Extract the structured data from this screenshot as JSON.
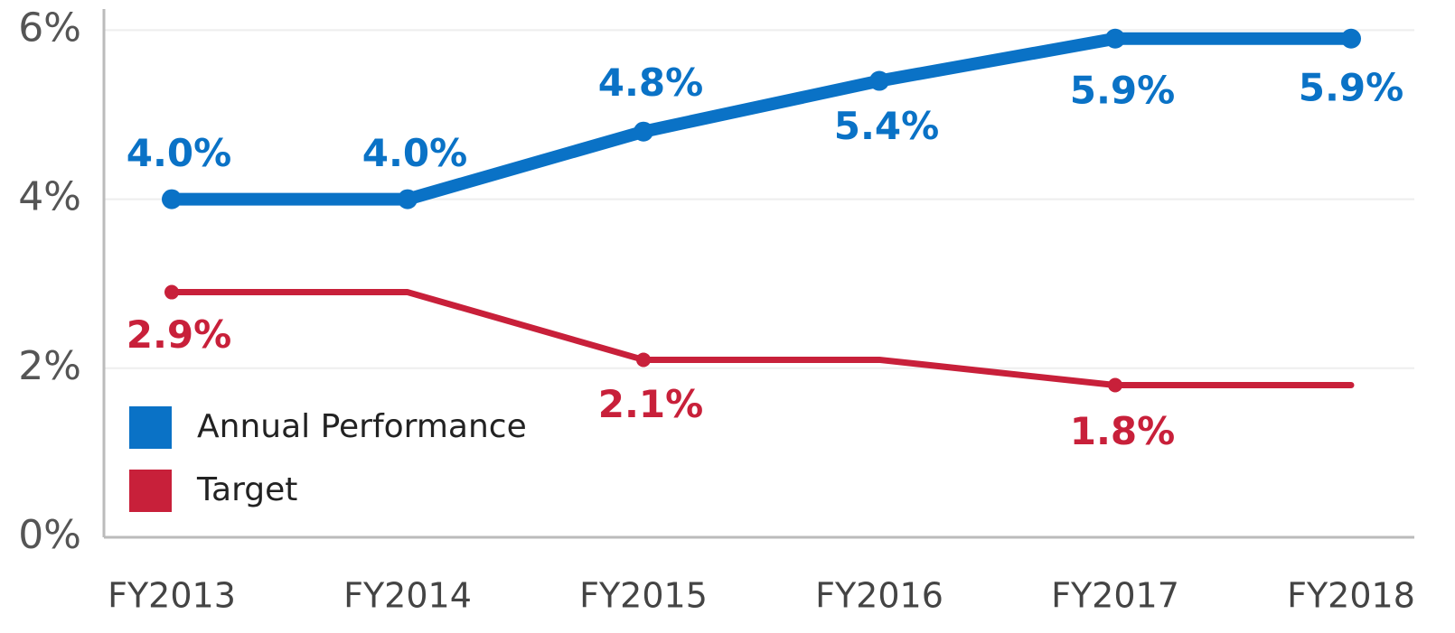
{
  "chart_data": {
    "type": "line",
    "categories": [
      "FY2013",
      "FY2014",
      "FY2015",
      "FY2016",
      "FY2017",
      "FY2018"
    ],
    "series": [
      {
        "name": "Annual Performance",
        "color": "#0a72c6",
        "values": [
          4.0,
          4.0,
          4.8,
          5.4,
          5.9,
          5.9
        ],
        "value_labels": [
          "4.0%",
          "4.0%",
          "4.8%",
          "5.4%",
          "5.9%",
          "5.9%"
        ]
      },
      {
        "name": "Target",
        "color": "#c8203a",
        "values": [
          2.9,
          2.9,
          2.1,
          2.1,
          1.8,
          1.8
        ],
        "value_labels": [
          "2.9%",
          null,
          "2.1%",
          null,
          "1.8%",
          null
        ]
      }
    ],
    "ylim": [
      0,
      6.25
    ],
    "yticks": [
      {
        "value": 0,
        "label": "0%"
      },
      {
        "value": 2,
        "label": "2%"
      },
      {
        "value": 4,
        "label": "4%"
      },
      {
        "value": 6,
        "label": "6%"
      }
    ],
    "grid": true,
    "legend": "lower left"
  }
}
